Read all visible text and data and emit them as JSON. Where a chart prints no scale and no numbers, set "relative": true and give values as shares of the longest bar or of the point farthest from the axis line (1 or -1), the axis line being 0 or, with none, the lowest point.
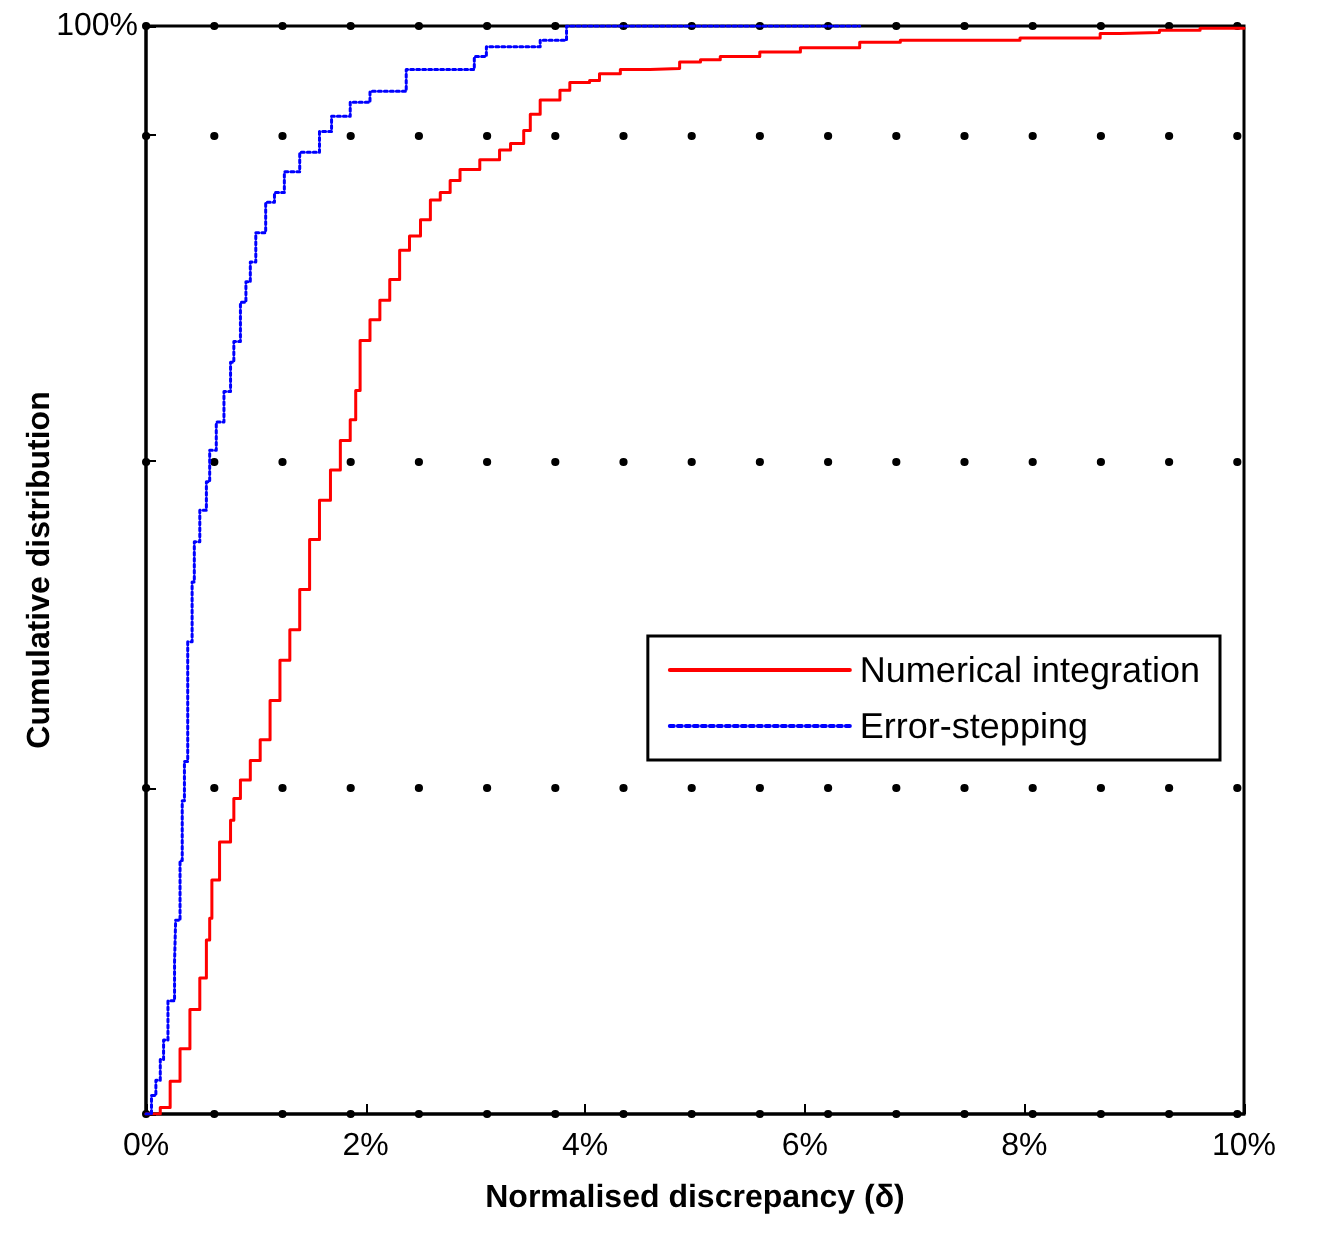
{
  "chart_data": {
    "type": "step",
    "relative": true,
    "xlabel": "Normalised discrepancy (δ)",
    "ylabel": "Cumulative distribution",
    "annotations": [
      "100%"
    ],
    "xlim": [
      0,
      10
    ],
    "xticks": [
      {
        "value": 0,
        "label": "0%"
      },
      {
        "value": 2,
        "label": "2%"
      },
      {
        "value": 4,
        "label": "4%"
      },
      {
        "value": 6,
        "label": "6%"
      },
      {
        "value": 8,
        "label": "8%"
      },
      {
        "value": 10,
        "label": "10%"
      }
    ],
    "grid": "y",
    "legend": "right",
    "marker": "none",
    "series": [
      {
        "name": "Numerical integration",
        "color": "#ff0000",
        "line_style": "solid",
        "x": [
          0,
          0.13,
          0.22,
          0.31,
          0.4,
          0.49,
          0.55,
          0.58,
          0.6,
          0.67,
          0.77,
          0.8,
          0.86,
          0.95,
          1.04,
          1.13,
          1.22,
          1.31,
          1.4,
          1.49,
          1.58,
          1.68,
          1.77,
          1.86,
          1.91,
          1.95,
          2.04,
          2.13,
          2.22,
          2.31,
          2.4,
          2.5,
          2.59,
          2.68,
          2.77,
          2.86,
          3.04,
          3.22,
          3.32,
          3.44,
          3.5,
          3.59,
          3.77,
          3.86,
          4.04,
          4.13,
          4.32,
          4.59,
          4.86,
          5.05,
          5.23,
          5.59,
          5.96,
          6.5,
          6.87,
          7.78,
          7.96,
          8.69,
          8.87,
          9.23,
          9.6,
          10
        ],
        "values": [
          0,
          0.006,
          0.03,
          0.06,
          0.096,
          0.125,
          0.16,
          0.18,
          0.215,
          0.25,
          0.27,
          0.29,
          0.307,
          0.325,
          0.344,
          0.38,
          0.417,
          0.445,
          0.482,
          0.528,
          0.564,
          0.592,
          0.619,
          0.638,
          0.665,
          0.711,
          0.73,
          0.748,
          0.767,
          0.794,
          0.807,
          0.822,
          0.84,
          0.847,
          0.858,
          0.868,
          0.877,
          0.886,
          0.892,
          0.904,
          0.919,
          0.932,
          0.941,
          0.948,
          0.95,
          0.956,
          0.96,
          0.961,
          0.967,
          0.969,
          0.972,
          0.976,
          0.98,
          0.985,
          0.987,
          0.987,
          0.989,
          0.993,
          0.994,
          0.996,
          0.998,
          0.998
        ]
      },
      {
        "name": "Error-stepping",
        "color": "#0000ff",
        "line_style": "dotted",
        "x": [
          0,
          0.05,
          0.09,
          0.13,
          0.16,
          0.2,
          0.26,
          0.27,
          0.31,
          0.33,
          0.35,
          0.38,
          0.42,
          0.44,
          0.49,
          0.55,
          0.58,
          0.64,
          0.71,
          0.77,
          0.8,
          0.86,
          0.91,
          0.95,
          1.0,
          1.09,
          1.17,
          1.26,
          1.4,
          1.58,
          1.69,
          1.86,
          2.04,
          2.37,
          2.99,
          3.1,
          3.59,
          3.83,
          6.5
        ],
        "values": [
          0,
          0.017,
          0.031,
          0.05,
          0.068,
          0.104,
          0.14,
          0.178,
          0.233,
          0.288,
          0.324,
          0.434,
          0.489,
          0.526,
          0.555,
          0.581,
          0.61,
          0.636,
          0.664,
          0.691,
          0.71,
          0.746,
          0.765,
          0.783,
          0.81,
          0.838,
          0.847,
          0.866,
          0.884,
          0.903,
          0.917,
          0.93,
          0.94,
          0.96,
          0.972,
          0.981,
          0.987,
          1.0,
          1.0
        ]
      }
    ]
  }
}
